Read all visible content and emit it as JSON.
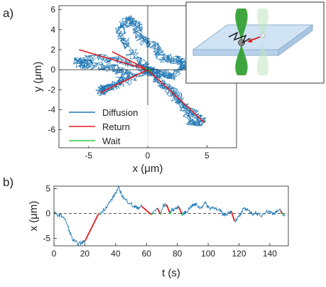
{
  "panel_a_label": "a)",
  "panel_b_label": "b)",
  "colors": {
    "diffusion": "#1f77b4",
    "return": "#e31a1c",
    "wait": "#2ecc40",
    "dashed": "#555555",
    "axis": "#222222",
    "inset_slide": "#cfe3f5",
    "inset_beam": "#2f9e2f"
  },
  "chart_data": [
    {
      "type": "line",
      "panel": "a",
      "xlabel": "x (μm)",
      "ylabel": "y (μm)",
      "xlim": [
        -7.5,
        7.5
      ],
      "ylim": [
        -7.8,
        6.4
      ],
      "xticks": [
        -5,
        0,
        5
      ],
      "yticks": [
        -6,
        -4,
        -2,
        0,
        2,
        4,
        6
      ],
      "grid": false,
      "legend_position": "lower-left",
      "legend": [
        {
          "label": "Diffusion",
          "color": "#1f77b4"
        },
        {
          "label": "Return",
          "color": "#e31a1c"
        },
        {
          "label": "Wait",
          "color": "#2ecc40"
        }
      ],
      "series": [
        {
          "name": "Diffusion",
          "description_points": [
            [
              0,
              0
            ],
            [
              -1.2,
              1.5
            ],
            [
              -2.5,
              3.6
            ],
            [
              -1.8,
              5.0
            ],
            [
              -1.0,
              4.6
            ],
            [
              -0.5,
              3.0
            ],
            [
              0.5,
              2.5
            ],
            [
              1.2,
              1.2
            ],
            [
              2.5,
              1.0
            ],
            [
              3.2,
              0.4
            ],
            [
              2.0,
              -0.6
            ],
            [
              0.8,
              -0.3
            ],
            [
              0,
              0
            ],
            [
              -2.0,
              0.8
            ],
            [
              -4.0,
              1.2
            ],
            [
              -6.0,
              0.8
            ],
            [
              -5.0,
              0.4
            ],
            [
              -3.0,
              0.2
            ],
            [
              -1.5,
              -0.5
            ],
            [
              -3.5,
              -1.8
            ],
            [
              -4.0,
              -2.2
            ],
            [
              -2.0,
              -1.2
            ],
            [
              0,
              0
            ],
            [
              2.0,
              -2.0
            ],
            [
              3.0,
              -3.5
            ],
            [
              3.8,
              -5.4
            ],
            [
              4.6,
              -5.2
            ],
            [
              3.5,
              -4.0
            ],
            [
              1.8,
              -2.0
            ],
            [
              0,
              0
            ]
          ]
        },
        {
          "name": "Return",
          "segments": [
            [
              [
                -5.8,
                2.0
              ],
              [
                0,
                0
              ]
            ],
            [
              [
                -3.0,
                1.8
              ],
              [
                0,
                0
              ]
            ],
            [
              [
                -4.0,
                -2.3
              ],
              [
                0,
                0
              ]
            ],
            [
              [
                4.8,
                -5.3
              ],
              [
                0,
                0
              ]
            ]
          ]
        },
        {
          "name": "Wait",
          "segments": [
            [
              [
                -0.2,
                0.1
              ],
              [
                0.3,
                -0.1
              ]
            ]
          ]
        }
      ]
    },
    {
      "type": "line",
      "panel": "b",
      "xlabel": "t (s)",
      "ylabel": "x (μm)",
      "xlim": [
        0,
        152
      ],
      "ylim": [
        -6.5,
        5.5
      ],
      "xticks": [
        0,
        20,
        40,
        60,
        80,
        100,
        120,
        140
      ],
      "yticks": [
        -5,
        0,
        5
      ],
      "grid": false,
      "reference_line": {
        "y": 0,
        "style": "dashed"
      },
      "series": [
        {
          "name": "Diffusion",
          "points": [
            [
              0,
              0
            ],
            [
              3,
              -0.3
            ],
            [
              6,
              -0.6
            ],
            [
              8,
              -1.8
            ],
            [
              10,
              -3.5
            ],
            [
              12,
              -5.2
            ],
            [
              14,
              -5.8
            ],
            [
              16,
              -6.1
            ],
            [
              18,
              -5.9
            ],
            [
              20,
              -5.6
            ],
            [
              30,
              0
            ],
            [
              33,
              1.0
            ],
            [
              36,
              2.2
            ],
            [
              38,
              3.1
            ],
            [
              40,
              4.2
            ],
            [
              42,
              5.1
            ],
            [
              44,
              3.8
            ],
            [
              46,
              2.8
            ],
            [
              49,
              2.2
            ],
            [
              52,
              1.3
            ],
            [
              55,
              1.2
            ],
            [
              57,
              1.4
            ],
            [
              63,
              -0.2
            ],
            [
              65,
              0.4
            ],
            [
              67,
              1.1
            ],
            [
              69,
              -0.1
            ],
            [
              71,
              1.6
            ],
            [
              73,
              1.8
            ],
            [
              75,
              0.2
            ],
            [
              77,
              0.8
            ],
            [
              79,
              1.0
            ],
            [
              81,
              1.3
            ],
            [
              83,
              -0.2
            ],
            [
              86,
              0.4
            ],
            [
              89,
              1.5
            ],
            [
              92,
              1.8
            ],
            [
              95,
              1.1
            ],
            [
              98,
              2.1
            ],
            [
              101,
              1.0
            ],
            [
              104,
              1.4
            ],
            [
              106,
              0.5
            ],
            [
              108,
              0.6
            ],
            [
              110,
              -0.3
            ],
            [
              113,
              0.1
            ],
            [
              115,
              0.5
            ],
            [
              117,
              -1.5
            ],
            [
              120,
              -0.7
            ],
            [
              123,
              0.8
            ],
            [
              126,
              0.9
            ],
            [
              128,
              -0.2
            ],
            [
              131,
              0.2
            ],
            [
              134,
              -0.7
            ],
            [
              136,
              0.2
            ],
            [
              139,
              0.5
            ],
            [
              142,
              0.0
            ],
            [
              145,
              0.5
            ],
            [
              147,
              0.6
            ],
            [
              148,
              -0.1
            ],
            [
              150,
              -0.4
            ]
          ]
        },
        {
          "name": "Return",
          "segments": [
            [
              [
                20,
                -5.6
              ],
              [
                29,
                0
              ]
            ],
            [
              [
                57,
                1.4
              ],
              [
                63,
                -0.2
              ]
            ],
            [
              [
                67,
                1.1
              ],
              [
                69,
                -0.1
              ]
            ],
            [
              [
                73,
                1.8
              ],
              [
                75,
                0.2
              ]
            ],
            [
              [
                81,
                1.3
              ],
              [
                83,
                -0.2
              ]
            ],
            [
              [
                115,
                0.5
              ],
              [
                117,
                -1.5
              ]
            ],
            [
              [
                147,
                0.6
              ],
              [
                148,
                -0.1
              ]
            ]
          ]
        },
        {
          "name": "Wait",
          "segments": [
            [
              [
                29,
                0
              ],
              [
                30,
                0
              ]
            ],
            [
              [
                63,
                -0.2
              ],
              [
                64,
                0
              ]
            ],
            [
              [
                69,
                -0.1
              ],
              [
                70,
                0
              ]
            ],
            [
              [
                75,
                0.2
              ],
              [
                76,
                0
              ]
            ],
            [
              [
                83,
                -0.2
              ],
              [
                84,
                0
              ]
            ],
            [
              [
                148,
                -0.1
              ],
              [
                149,
                0
              ]
            ]
          ]
        }
      ]
    }
  ]
}
